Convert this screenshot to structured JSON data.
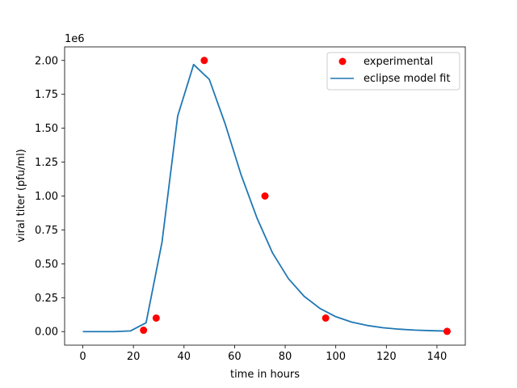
{
  "chart_data": {
    "type": "scatter",
    "xlabel": "time in hours",
    "ylabel": "viral titer (pfu/ml)",
    "y_offset_label": "1e6",
    "xlim": [
      -7.2,
      151.2
    ],
    "ylim": [
      -0.1,
      2.1
    ],
    "y_scale_factor": 1000000,
    "x_ticks": [
      0,
      20,
      40,
      60,
      80,
      100,
      120,
      140
    ],
    "y_ticks": [
      0.0,
      0.25,
      0.5,
      0.75,
      1.0,
      1.25,
      1.5,
      1.75,
      2.0
    ],
    "x_tick_labels": [
      "0",
      "20",
      "40",
      "60",
      "80",
      "100",
      "120",
      "140"
    ],
    "y_tick_labels": [
      "0.00",
      "0.25",
      "0.50",
      "0.75",
      "1.00",
      "1.25",
      "1.50",
      "1.75",
      "2.00"
    ],
    "legend_position": "top-right",
    "series": [
      {
        "name": "experimental",
        "kind": "scatter",
        "color": "#ff0000",
        "x": [
          24,
          29,
          48,
          72,
          96,
          144
        ],
        "y": [
          0.01,
          0.1,
          2.0,
          1.0,
          0.1,
          0.002
        ]
      },
      {
        "name": "eclipse model fit",
        "kind": "line",
        "color": "#1f77b4",
        "x": [
          0,
          6.3,
          12.5,
          18.8,
          25,
          31.3,
          37.5,
          43.8,
          50,
          56.3,
          62.5,
          68.8,
          75,
          81.3,
          87.5,
          93.8,
          100,
          106.3,
          112.5,
          118.8,
          125,
          131.3,
          137.5,
          143.8
        ],
        "y": [
          0.0,
          0.0,
          0.0,
          0.005,
          0.065,
          0.66,
          1.59,
          1.97,
          1.86,
          1.53,
          1.16,
          0.84,
          0.58,
          0.39,
          0.26,
          0.17,
          0.11,
          0.07,
          0.045,
          0.028,
          0.018,
          0.011,
          0.007,
          0.004
        ]
      }
    ]
  }
}
